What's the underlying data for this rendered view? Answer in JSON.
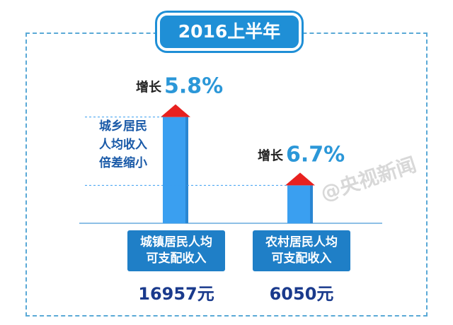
{
  "title": "2016上半年",
  "note_lines": [
    "城乡居民",
    "人均收入",
    "倍差缩小"
  ],
  "watermark": "@央视新闻",
  "colors": {
    "bar": "#3a9ff0",
    "cap": "#e8211f",
    "accent": "#1f8fd6",
    "category_box": "#1f7fc7"
  },
  "chart_data": {
    "type": "bar",
    "categories": [
      "城镇居民人均\n可支配收入",
      "农村居民人均\n可支配收入"
    ],
    "category_lines": [
      [
        "城镇居民人均",
        "可支配收入"
      ],
      [
        "农村居民人均",
        "可支配收入"
      ]
    ],
    "values": [
      16957,
      6050
    ],
    "value_labels": [
      "16957元",
      "6050元"
    ],
    "growth_prefix": "增长",
    "growth": [
      "5.8%",
      "6.7%"
    ],
    "ylim": [
      0,
      18500
    ]
  }
}
